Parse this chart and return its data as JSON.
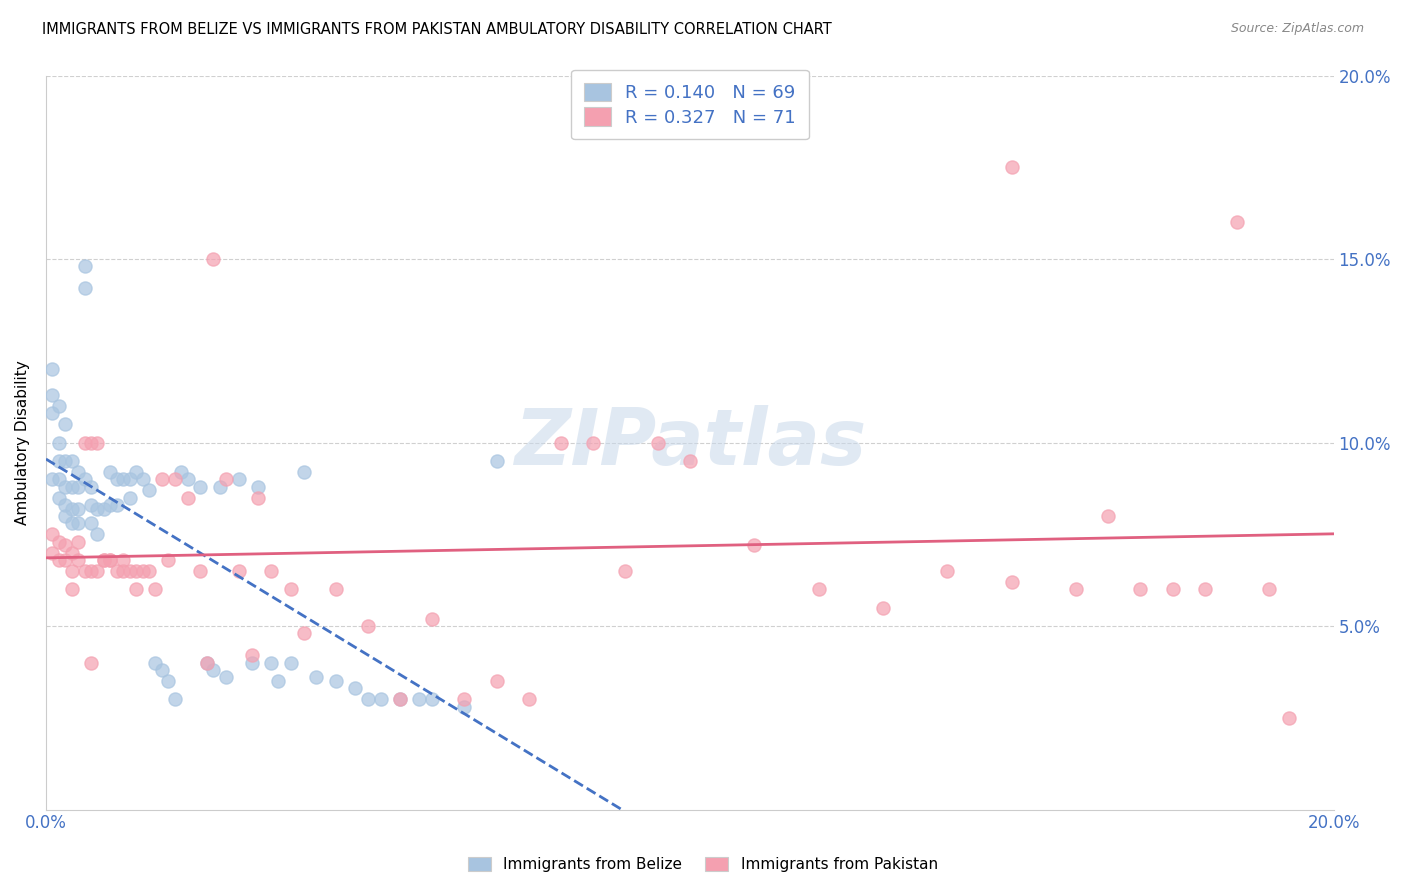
{
  "title": "IMMIGRANTS FROM BELIZE VS IMMIGRANTS FROM PAKISTAN AMBULATORY DISABILITY CORRELATION CHART",
  "source": "Source: ZipAtlas.com",
  "ylabel": "Ambulatory Disability",
  "x_min": 0.0,
  "x_max": 0.2,
  "y_min": 0.0,
  "y_max": 0.2,
  "belize_R": "0.140",
  "belize_N": "69",
  "pakistan_R": "0.327",
  "pakistan_N": "71",
  "belize_color": "#a8c4e0",
  "pakistan_color": "#f4a0b0",
  "belize_line_color": "#4472c4",
  "pakistan_line_color": "#e06080",
  "legend_text_color": "#4472c4",
  "watermark": "ZIPatlas",
  "belize_x": [
    0.001,
    0.001,
    0.001,
    0.001,
    0.002,
    0.002,
    0.002,
    0.002,
    0.002,
    0.003,
    0.003,
    0.003,
    0.003,
    0.003,
    0.004,
    0.004,
    0.004,
    0.004,
    0.005,
    0.005,
    0.005,
    0.005,
    0.006,
    0.006,
    0.006,
    0.007,
    0.007,
    0.007,
    0.008,
    0.008,
    0.009,
    0.01,
    0.01,
    0.011,
    0.011,
    0.012,
    0.013,
    0.013,
    0.014,
    0.015,
    0.016,
    0.017,
    0.018,
    0.019,
    0.02,
    0.021,
    0.022,
    0.024,
    0.025,
    0.026,
    0.027,
    0.028,
    0.03,
    0.032,
    0.033,
    0.035,
    0.036,
    0.038,
    0.04,
    0.042,
    0.045,
    0.048,
    0.05,
    0.052,
    0.055,
    0.058,
    0.06,
    0.065,
    0.07
  ],
  "belize_y": [
    0.12,
    0.113,
    0.108,
    0.09,
    0.11,
    0.1,
    0.095,
    0.09,
    0.085,
    0.105,
    0.095,
    0.088,
    0.083,
    0.08,
    0.095,
    0.088,
    0.082,
    0.078,
    0.092,
    0.088,
    0.082,
    0.078,
    0.148,
    0.142,
    0.09,
    0.088,
    0.083,
    0.078,
    0.082,
    0.075,
    0.082,
    0.092,
    0.083,
    0.09,
    0.083,
    0.09,
    0.09,
    0.085,
    0.092,
    0.09,
    0.087,
    0.04,
    0.038,
    0.035,
    0.03,
    0.092,
    0.09,
    0.088,
    0.04,
    0.038,
    0.088,
    0.036,
    0.09,
    0.04,
    0.088,
    0.04,
    0.035,
    0.04,
    0.092,
    0.036,
    0.035,
    0.033,
    0.03,
    0.03,
    0.03,
    0.03,
    0.03,
    0.028,
    0.095
  ],
  "pakistan_x": [
    0.001,
    0.001,
    0.002,
    0.002,
    0.003,
    0.003,
    0.004,
    0.004,
    0.004,
    0.005,
    0.005,
    0.006,
    0.006,
    0.007,
    0.007,
    0.008,
    0.008,
    0.009,
    0.009,
    0.01,
    0.01,
    0.011,
    0.012,
    0.012,
    0.013,
    0.014,
    0.014,
    0.015,
    0.016,
    0.017,
    0.018,
    0.019,
    0.02,
    0.022,
    0.024,
    0.026,
    0.028,
    0.03,
    0.033,
    0.035,
    0.038,
    0.04,
    0.045,
    0.05,
    0.055,
    0.06,
    0.065,
    0.07,
    0.075,
    0.08,
    0.085,
    0.09,
    0.095,
    0.1,
    0.11,
    0.12,
    0.13,
    0.14,
    0.15,
    0.16,
    0.165,
    0.17,
    0.175,
    0.18,
    0.185,
    0.19,
    0.193,
    0.007,
    0.025,
    0.032,
    0.15
  ],
  "pakistan_y": [
    0.07,
    0.075,
    0.068,
    0.073,
    0.068,
    0.072,
    0.06,
    0.065,
    0.07,
    0.068,
    0.073,
    0.065,
    0.1,
    0.065,
    0.1,
    0.065,
    0.1,
    0.068,
    0.068,
    0.068,
    0.068,
    0.065,
    0.065,
    0.068,
    0.065,
    0.065,
    0.06,
    0.065,
    0.065,
    0.06,
    0.09,
    0.068,
    0.09,
    0.085,
    0.065,
    0.15,
    0.09,
    0.065,
    0.085,
    0.065,
    0.06,
    0.048,
    0.06,
    0.05,
    0.03,
    0.052,
    0.03,
    0.035,
    0.03,
    0.1,
    0.1,
    0.065,
    0.1,
    0.095,
    0.072,
    0.06,
    0.055,
    0.065,
    0.062,
    0.06,
    0.08,
    0.06,
    0.06,
    0.06,
    0.16,
    0.06,
    0.025,
    0.04,
    0.04,
    0.042,
    0.175
  ]
}
